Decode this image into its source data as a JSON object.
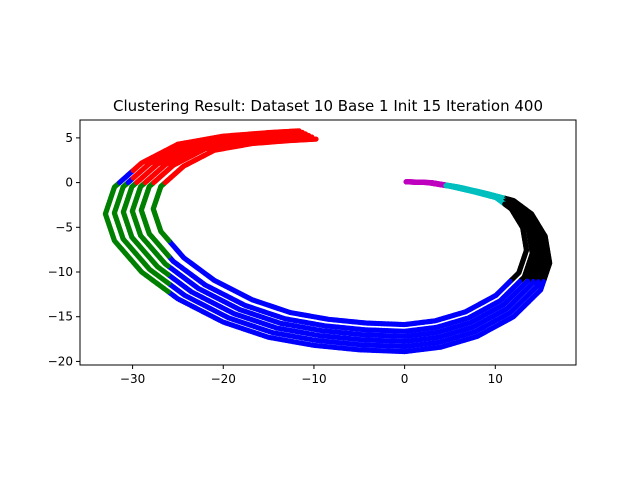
{
  "chart_data": {
    "type": "scatter",
    "title": "Clustering Result: Dataset 10 Base 1 Init 15 Iteration 400",
    "xlabel": "",
    "ylabel": "",
    "xlim": [
      -35.8,
      18.9
    ],
    "ylim": [
      -20.4,
      7.0
    ],
    "xticks": [
      -30,
      -20,
      -10,
      0,
      10
    ],
    "yticks": [
      5,
      0,
      -5,
      -10,
      -15,
      -20
    ],
    "grid": false,
    "legend": "none",
    "cluster_colors": [
      "#0000ff",
      "#ff0000",
      "#008000",
      "#000000",
      "#00bfbf",
      "#bf00bf"
    ],
    "spiral_arms": [
      {
        "scale": 1.0,
        "path": [
          [
            0.2,
            0.1
          ],
          [
            3,
            0.0
          ],
          [
            6,
            -0.5
          ],
          [
            9,
            -1.2
          ],
          [
            12,
            -2.0
          ],
          [
            14,
            -3.5
          ],
          [
            15.5,
            -6.0
          ],
          [
            16,
            -9.0
          ],
          [
            15,
            -12.0
          ],
          [
            12,
            -15.0
          ],
          [
            8,
            -17.2
          ],
          [
            4,
            -18.4
          ],
          [
            0,
            -18.9
          ],
          [
            -5,
            -18.7
          ],
          [
            -10,
            -18.2
          ],
          [
            -15,
            -17.3
          ],
          [
            -20,
            -15.6
          ],
          [
            -25,
            -13.0
          ],
          [
            -29,
            -10.0
          ],
          [
            -32,
            -6.5
          ],
          [
            -33,
            -3.5
          ],
          [
            -32,
            -0.5
          ],
          [
            -29,
            2.2
          ],
          [
            -25,
            4.3
          ],
          [
            -20,
            5.2
          ],
          [
            -15,
            5.6
          ],
          [
            -11.5,
            5.8
          ]
        ]
      },
      {
        "scale": 0.97,
        "path": [
          [
            0.2,
            0.1
          ],
          [
            3,
            0.0
          ],
          [
            6,
            -0.5
          ],
          [
            9,
            -1.2
          ],
          [
            12,
            -2.0
          ],
          [
            14,
            -3.5
          ],
          [
            15.5,
            -6.0
          ],
          [
            16,
            -9.0
          ],
          [
            15,
            -12.0
          ],
          [
            12,
            -15.0
          ],
          [
            8,
            -17.2
          ],
          [
            4,
            -18.4
          ],
          [
            0,
            -18.9
          ],
          [
            -5,
            -18.7
          ],
          [
            -10,
            -18.2
          ],
          [
            -15,
            -17.3
          ],
          [
            -20,
            -15.6
          ],
          [
            -25,
            -13.0
          ],
          [
            -29,
            -10.0
          ],
          [
            -32,
            -6.5
          ],
          [
            -33,
            -3.5
          ],
          [
            -32,
            -0.5
          ],
          [
            -29,
            2.2
          ],
          [
            -25,
            4.3
          ],
          [
            -20,
            5.2
          ],
          [
            -15,
            5.6
          ],
          [
            -11.5,
            5.8
          ]
        ]
      },
      {
        "scale": 0.94,
        "path": [
          [
            0.2,
            0.1
          ],
          [
            3,
            0.0
          ],
          [
            6,
            -0.5
          ],
          [
            9,
            -1.2
          ],
          [
            12,
            -2.0
          ],
          [
            14,
            -3.5
          ],
          [
            15.5,
            -6.0
          ],
          [
            16,
            -9.0
          ],
          [
            15,
            -12.0
          ],
          [
            12,
            -15.0
          ],
          [
            8,
            -17.2
          ],
          [
            4,
            -18.4
          ],
          [
            0,
            -18.9
          ],
          [
            -5,
            -18.7
          ],
          [
            -10,
            -18.2
          ],
          [
            -15,
            -17.3
          ],
          [
            -20,
            -15.6
          ],
          [
            -25,
            -13.0
          ],
          [
            -29,
            -10.0
          ],
          [
            -32,
            -6.5
          ],
          [
            -33,
            -3.5
          ],
          [
            -32,
            -0.5
          ],
          [
            -29,
            2.2
          ],
          [
            -25,
            4.3
          ],
          [
            -20,
            5.2
          ],
          [
            -15,
            5.6
          ],
          [
            -11.5,
            5.8
          ]
        ]
      },
      {
        "scale": 0.91,
        "path": [
          [
            0.2,
            0.1
          ],
          [
            3,
            0.0
          ],
          [
            6,
            -0.5
          ],
          [
            9,
            -1.2
          ],
          [
            12,
            -2.0
          ],
          [
            14,
            -3.5
          ],
          [
            15.5,
            -6.0
          ],
          [
            16,
            -9.0
          ],
          [
            15,
            -12.0
          ],
          [
            12,
            -15.0
          ],
          [
            8,
            -17.2
          ],
          [
            4,
            -18.4
          ],
          [
            0,
            -18.9
          ],
          [
            -5,
            -18.7
          ],
          [
            -10,
            -18.2
          ],
          [
            -15,
            -17.3
          ],
          [
            -20,
            -15.6
          ],
          [
            -25,
            -13.0
          ],
          [
            -29,
            -10.0
          ],
          [
            -32,
            -6.5
          ],
          [
            -33,
            -3.5
          ],
          [
            -32,
            -0.5
          ],
          [
            -29,
            2.2
          ],
          [
            -25,
            4.3
          ],
          [
            -20,
            5.2
          ],
          [
            -15,
            5.6
          ],
          [
            -11.5,
            5.8
          ]
        ]
      },
      {
        "scale": 0.88,
        "path": [
          [
            0.2,
            0.1
          ],
          [
            3,
            0.0
          ],
          [
            6,
            -0.5
          ],
          [
            9,
            -1.2
          ],
          [
            12,
            -2.0
          ],
          [
            14,
            -3.5
          ],
          [
            15.5,
            -6.0
          ],
          [
            16,
            -9.0
          ],
          [
            15,
            -12.0
          ],
          [
            12,
            -15.0
          ],
          [
            8,
            -17.2
          ],
          [
            4,
            -18.4
          ],
          [
            0,
            -18.9
          ],
          [
            -5,
            -18.7
          ],
          [
            -10,
            -18.2
          ],
          [
            -15,
            -17.3
          ],
          [
            -20,
            -15.6
          ],
          [
            -25,
            -13.0
          ],
          [
            -29,
            -10.0
          ],
          [
            -32,
            -6.5
          ],
          [
            -33,
            -3.5
          ],
          [
            -32,
            -0.5
          ],
          [
            -29,
            2.2
          ],
          [
            -25,
            4.3
          ],
          [
            -20,
            5.2
          ],
          [
            -15,
            5.6
          ],
          [
            -11.5,
            5.8
          ]
        ]
      },
      {
        "scale": 0.84,
        "path": [
          [
            0.2,
            0.1
          ],
          [
            3,
            0.0
          ],
          [
            6,
            -0.5
          ],
          [
            9,
            -1.2
          ],
          [
            12,
            -2.0
          ],
          [
            14,
            -3.5
          ],
          [
            15.5,
            -6.0
          ],
          [
            16,
            -9.0
          ],
          [
            15,
            -12.0
          ],
          [
            12,
            -15.0
          ],
          [
            8,
            -17.2
          ],
          [
            4,
            -18.4
          ],
          [
            0,
            -18.9
          ],
          [
            -5,
            -18.7
          ],
          [
            -10,
            -18.2
          ],
          [
            -15,
            -17.3
          ],
          [
            -20,
            -15.6
          ],
          [
            -25,
            -13.0
          ],
          [
            -29,
            -10.0
          ],
          [
            -32,
            -6.5
          ],
          [
            -33,
            -3.5
          ],
          [
            -32,
            -0.5
          ],
          [
            -29,
            2.2
          ],
          [
            -25,
            4.3
          ],
          [
            -20,
            5.2
          ],
          [
            -15,
            5.6
          ],
          [
            -11.5,
            5.8
          ]
        ]
      }
    ],
    "clusters": [
      {
        "color": "#bf00bf",
        "x_range": [
          0,
          4.5
        ],
        "y_range": [
          -0.6,
          0.3
        ]
      },
      {
        "color": "#00bfbf",
        "x_range": [
          4.5,
          11
        ],
        "y_range": [
          -2.5,
          0.2
        ]
      },
      {
        "color": "#000000",
        "x_range": [
          11,
          17
        ],
        "y_range": [
          -11,
          -1.5
        ]
      },
      {
        "color": "#0000ff",
        "x_range": [
          -26,
          17
        ],
        "y_range": [
          -20,
          -11
        ]
      },
      {
        "color": "#008000",
        "x_range": [
          -34,
          -26
        ],
        "y_range": [
          -15,
          0
        ]
      },
      {
        "color": "#ff0000",
        "x_range": [
          -30,
          -9
        ],
        "y_range": [
          0,
          6
        ]
      }
    ]
  }
}
